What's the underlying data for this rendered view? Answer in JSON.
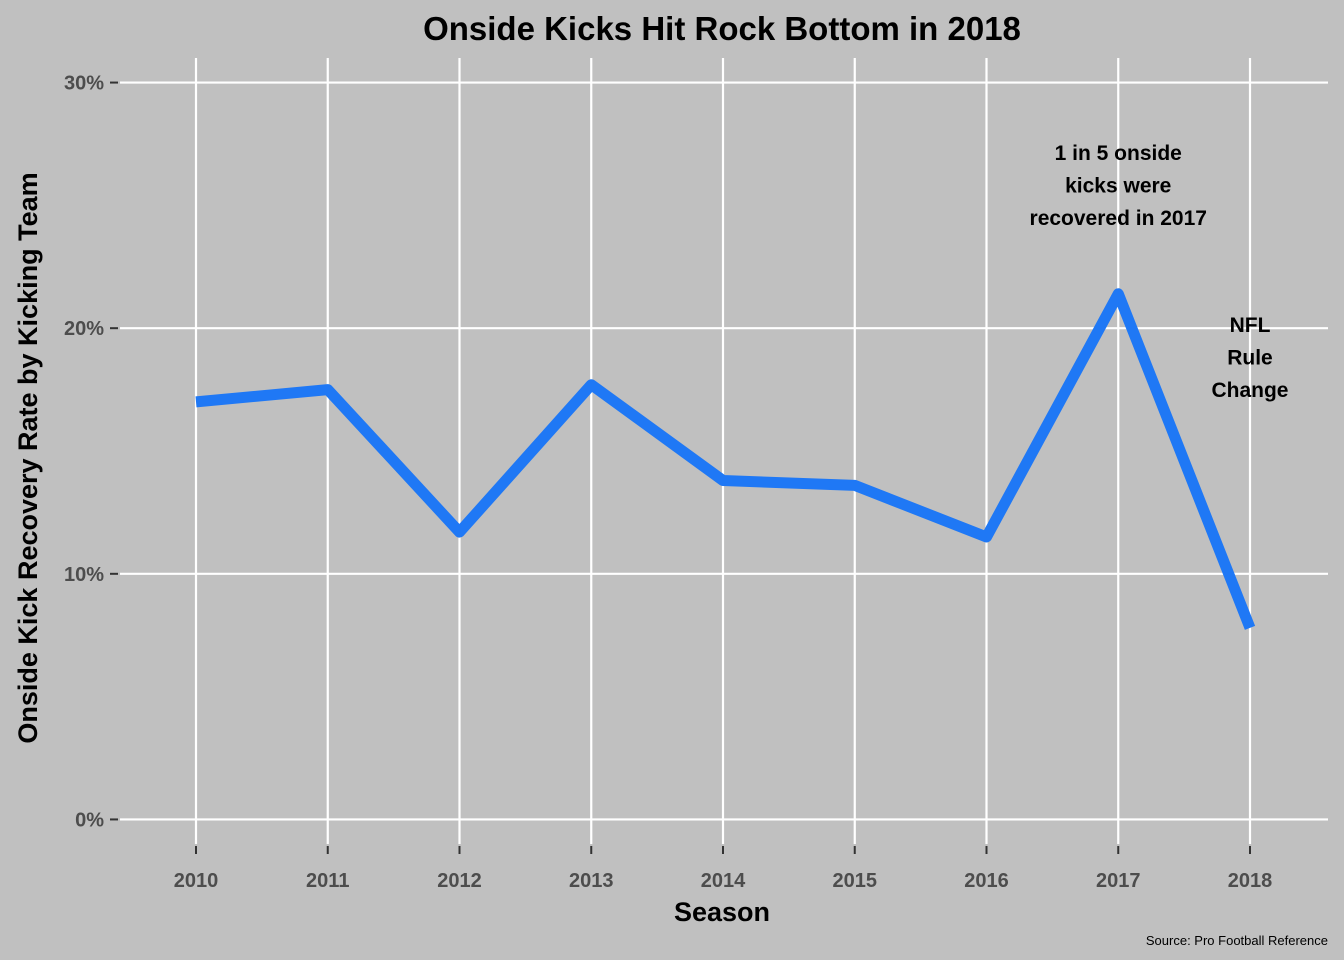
{
  "chart_data": {
    "type": "line",
    "title": "Onside Kicks Hit Rock Bottom in 2018",
    "xlabel": "Season",
    "ylabel": "Onside Kick Recovery Rate by Kicking Team",
    "x": [
      "2010",
      "2011",
      "2012",
      "2013",
      "2014",
      "2015",
      "2016",
      "2017",
      "2018"
    ],
    "y_ticks": [
      {
        "value": 0,
        "label": "0%"
      },
      {
        "value": 10,
        "label": "10%"
      },
      {
        "value": 20,
        "label": "20%"
      },
      {
        "value": 30,
        "label": "30%"
      }
    ],
    "ylim": [
      -1,
      31
    ],
    "series": [
      {
        "values": [
          17.0,
          17.5,
          11.7,
          17.7,
          13.8,
          13.6,
          11.5,
          21.4,
          7.8
        ],
        "color": "#1f78f5"
      }
    ],
    "annotations": [
      {
        "x": "2017",
        "y": 25.8,
        "lines": [
          "1 in 5 onside",
          "kicks were",
          "recovered in 2017"
        ]
      },
      {
        "x": "2018",
        "y": 18.8,
        "lines": [
          "NFL",
          "Rule",
          "Change"
        ]
      }
    ],
    "grid": true,
    "legend": "none",
    "source": "Source: Pro Football Reference",
    "background_color": "#c0c0c0",
    "grid_color": "#ffffff"
  }
}
